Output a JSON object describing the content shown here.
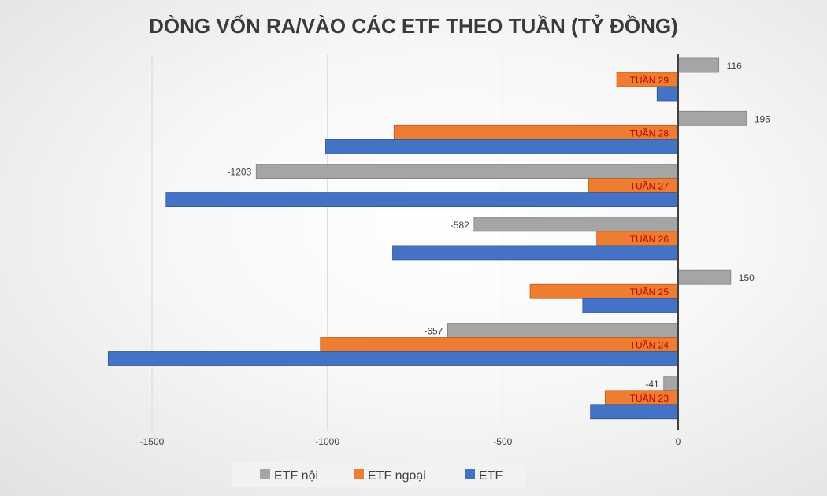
{
  "chart_data": {
    "type": "bar",
    "orientation": "horizontal",
    "title": "DÒNG VỐN RA/VÀO CÁC ETF THEO TUẦN (TỶ ĐỒNG)",
    "categories": [
      "TUẦN 29",
      "TUẦN 28",
      "TUẦN 27",
      "TUẦN 26",
      "TUẦN 25",
      "TUẦN 24",
      "TUẦN 23"
    ],
    "series": [
      {
        "name": "ETF nội",
        "color": "#a5a5a5",
        "values": [
          116,
          195,
          -1203,
          -582,
          150,
          -657,
          -41
        ],
        "show_labels": true
      },
      {
        "name": "ETF ngoại",
        "color": "#ed7d31",
        "values": [
          -175,
          -810,
          -255,
          -232,
          -422,
          -1020,
          -208
        ],
        "show_labels": false
      },
      {
        "name": "ETF",
        "color": "#4472c4",
        "values": [
          -60,
          -1005,
          -1460,
          -814,
          -272,
          -1625,
          -250
        ],
        "show_labels": false
      }
    ],
    "xlim": [
      -1640,
      210
    ],
    "xticks": [
      -1500,
      -1000,
      -500,
      0
    ],
    "grid": true,
    "legend_position": "bottom"
  }
}
